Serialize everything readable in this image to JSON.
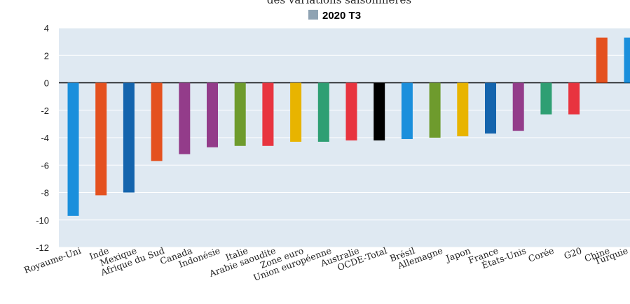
{
  "chart_data": {
    "type": "bar",
    "title": "des variations saisonnières",
    "legend": [
      {
        "label": "2020 T3",
        "color": "#8fa3b3"
      }
    ],
    "legend_position": "top-center",
    "grid": true,
    "ylim": [
      -12,
      4
    ],
    "yticks": [
      "4",
      "2",
      "0",
      "-2",
      "-4",
      "-6",
      "-8",
      "-10",
      "-12"
    ],
    "categories": [
      "Royaume-Uni",
      "Inde",
      "Mexique",
      "Afrique du Sud",
      "Canada",
      "Indonésie",
      "Italie",
      "Arabie saoudite",
      "Zone euro",
      "Union européenne",
      "Australie",
      "OCDE-Total",
      "Brésil",
      "Allemagne",
      "Japon",
      "France",
      "États-Unis",
      "Corée",
      "G20",
      "Chine",
      "Turquie"
    ],
    "values": [
      -9.7,
      -8.2,
      -8.0,
      -5.7,
      -5.2,
      -4.7,
      -4.6,
      -4.6,
      -4.3,
      -4.3,
      -4.2,
      -4.2,
      -4.1,
      -4.0,
      -3.9,
      -3.7,
      -3.5,
      -2.3,
      -2.3,
      3.3,
      3.3
    ],
    "colors": [
      "#1a8fdc",
      "#e4511f",
      "#1464ad",
      "#e4511f",
      "#933c8a",
      "#933c8a",
      "#6e9b2d",
      "#e8343f",
      "#e8b400",
      "#2e9f73",
      "#e8343f",
      "#000000",
      "#1a8fdc",
      "#6e9b2d",
      "#e8b400",
      "#1464ad",
      "#933c8a",
      "#2e9f73",
      "#e8343f",
      "#e4511f",
      "#1a8fdc"
    ],
    "plot_background": "#dfe9f2"
  }
}
